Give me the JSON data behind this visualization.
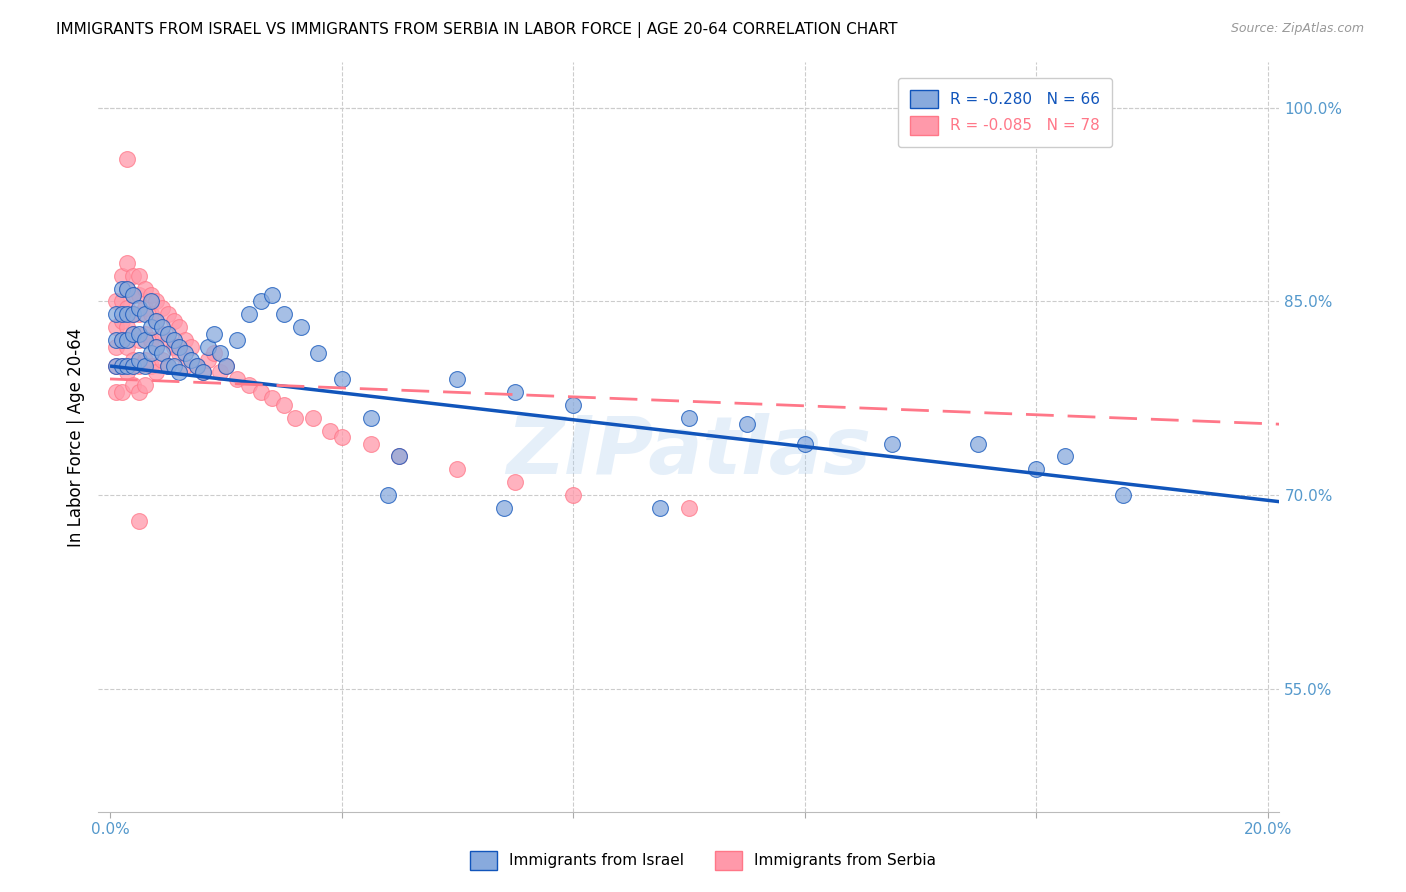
{
  "title": "IMMIGRANTS FROM ISRAEL VS IMMIGRANTS FROM SERBIA IN LABOR FORCE | AGE 20-64 CORRELATION CHART",
  "source_text": "Source: ZipAtlas.com",
  "ylabel": "In Labor Force | Age 20-64",
  "xlim": [
    -0.002,
    0.202
  ],
  "ylim": [
    0.455,
    1.035
  ],
  "yticks": [
    0.55,
    0.7,
    0.85,
    1.0
  ],
  "ytick_labels": [
    "55.0%",
    "70.0%",
    "85.0%",
    "100.0%"
  ],
  "xticks": [
    0.0,
    0.04,
    0.08,
    0.12,
    0.16,
    0.2
  ],
  "xtick_labels": [
    "0.0%",
    "",
    "",
    "",
    "",
    "20.0%"
  ],
  "R_israel": -0.28,
  "N_israel": 66,
  "R_serbia": -0.085,
  "N_serbia": 78,
  "israel_color": "#88AADD",
  "serbia_color": "#FF99AA",
  "israel_line_color": "#1155BB",
  "serbia_line_color": "#FF7788",
  "watermark": "ZIPatlas",
  "background_color": "#ffffff",
  "grid_color": "#cccccc",
  "axis_color": "#5599CC",
  "israel_line_x0": 0.0,
  "israel_line_y0": 0.8,
  "israel_line_x1": 0.202,
  "israel_line_y1": 0.695,
  "serbia_line_x0": 0.0,
  "serbia_line_y0": 0.79,
  "serbia_line_x1": 0.202,
  "serbia_line_y1": 0.755,
  "title_fontsize": 11,
  "axis_label_fontsize": 12,
  "tick_fontsize": 11,
  "legend_fontsize": 11,
  "israel_x": [
    0.001,
    0.001,
    0.001,
    0.002,
    0.002,
    0.002,
    0.002,
    0.003,
    0.003,
    0.003,
    0.003,
    0.004,
    0.004,
    0.004,
    0.004,
    0.005,
    0.005,
    0.005,
    0.006,
    0.006,
    0.006,
    0.007,
    0.007,
    0.007,
    0.008,
    0.008,
    0.009,
    0.009,
    0.01,
    0.01,
    0.011,
    0.011,
    0.012,
    0.012,
    0.013,
    0.014,
    0.015,
    0.016,
    0.017,
    0.018,
    0.019,
    0.02,
    0.022,
    0.024,
    0.026,
    0.028,
    0.03,
    0.033,
    0.036,
    0.04,
    0.045,
    0.05,
    0.06,
    0.07,
    0.08,
    0.1,
    0.11,
    0.12,
    0.135,
    0.15,
    0.165,
    0.048,
    0.068,
    0.095,
    0.16,
    0.175
  ],
  "israel_y": [
    0.84,
    0.82,
    0.8,
    0.86,
    0.84,
    0.82,
    0.8,
    0.86,
    0.84,
    0.82,
    0.8,
    0.855,
    0.84,
    0.825,
    0.8,
    0.845,
    0.825,
    0.805,
    0.84,
    0.82,
    0.8,
    0.85,
    0.83,
    0.81,
    0.835,
    0.815,
    0.83,
    0.81,
    0.825,
    0.8,
    0.82,
    0.8,
    0.815,
    0.795,
    0.81,
    0.805,
    0.8,
    0.795,
    0.815,
    0.825,
    0.81,
    0.8,
    0.82,
    0.84,
    0.85,
    0.855,
    0.84,
    0.83,
    0.81,
    0.79,
    0.76,
    0.73,
    0.79,
    0.78,
    0.77,
    0.76,
    0.755,
    0.74,
    0.74,
    0.74,
    0.73,
    0.7,
    0.69,
    0.69,
    0.72,
    0.7
  ],
  "serbia_x": [
    0.001,
    0.001,
    0.001,
    0.001,
    0.001,
    0.002,
    0.002,
    0.002,
    0.002,
    0.002,
    0.002,
    0.003,
    0.003,
    0.003,
    0.003,
    0.003,
    0.003,
    0.004,
    0.004,
    0.004,
    0.004,
    0.004,
    0.004,
    0.005,
    0.005,
    0.005,
    0.005,
    0.005,
    0.005,
    0.006,
    0.006,
    0.006,
    0.006,
    0.006,
    0.007,
    0.007,
    0.007,
    0.007,
    0.008,
    0.008,
    0.008,
    0.008,
    0.009,
    0.009,
    0.009,
    0.01,
    0.01,
    0.01,
    0.011,
    0.011,
    0.012,
    0.012,
    0.013,
    0.013,
    0.014,
    0.015,
    0.016,
    0.017,
    0.018,
    0.019,
    0.02,
    0.022,
    0.024,
    0.026,
    0.028,
    0.03,
    0.032,
    0.035,
    0.038,
    0.04,
    0.045,
    0.05,
    0.06,
    0.07,
    0.08,
    0.1,
    0.003,
    0.005
  ],
  "serbia_y": [
    0.85,
    0.83,
    0.815,
    0.8,
    0.78,
    0.87,
    0.85,
    0.835,
    0.82,
    0.8,
    0.78,
    0.88,
    0.86,
    0.845,
    0.83,
    0.815,
    0.795,
    0.87,
    0.855,
    0.84,
    0.825,
    0.805,
    0.785,
    0.87,
    0.855,
    0.84,
    0.82,
    0.8,
    0.78,
    0.86,
    0.845,
    0.825,
    0.805,
    0.785,
    0.855,
    0.84,
    0.82,
    0.8,
    0.85,
    0.835,
    0.815,
    0.795,
    0.845,
    0.825,
    0.805,
    0.84,
    0.82,
    0.8,
    0.835,
    0.815,
    0.83,
    0.81,
    0.82,
    0.8,
    0.815,
    0.8,
    0.795,
    0.805,
    0.81,
    0.795,
    0.8,
    0.79,
    0.785,
    0.78,
    0.775,
    0.77,
    0.76,
    0.76,
    0.75,
    0.745,
    0.74,
    0.73,
    0.72,
    0.71,
    0.7,
    0.69,
    0.96,
    0.68
  ]
}
